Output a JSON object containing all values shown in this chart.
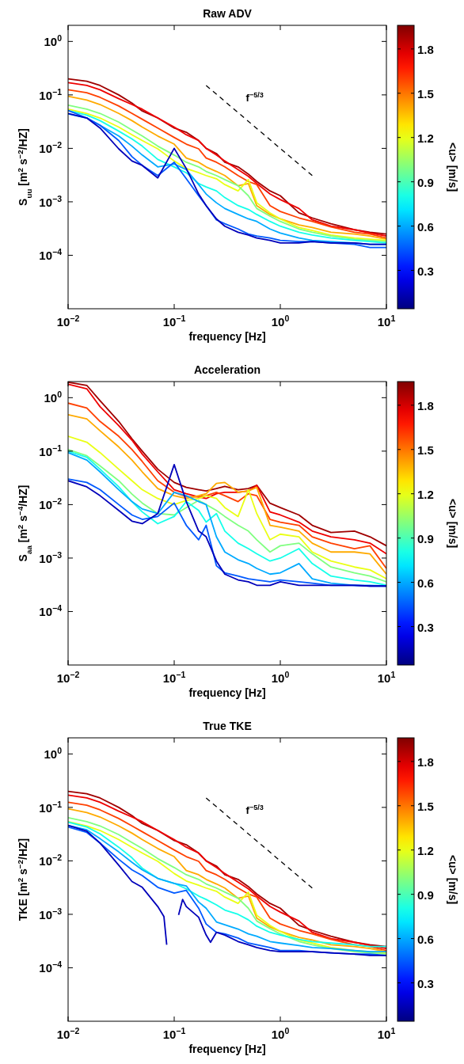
{
  "chart_data": [
    {
      "type": "line",
      "title": "Raw ADV",
      "xlabel": "frequency [Hz]",
      "ylabel": "S$_{uu}$ [m$^{2}$ s$^{−2}$/HZ]",
      "clabel": "<u> [m/s]",
      "log": "xy",
      "xlim": [
        0.01,
        10
      ],
      "ylim": [
        1e-05,
        2
      ],
      "xticks": [
        {
          "value": 0.01,
          "label": "10$^{−2}$"
        },
        {
          "value": 0.1,
          "label": "10$^{−1}$"
        },
        {
          "value": 1,
          "label": "10$^{0}$"
        },
        {
          "value": 10,
          "label": "10$^{1}$"
        }
      ],
      "yticks": [
        {
          "value": 0.0001,
          "label": "10$^{−4}$"
        },
        {
          "value": 0.001,
          "label": "10$^{−3}$"
        },
        {
          "value": 0.01,
          "label": "10$^{−2}$"
        },
        {
          "value": 0.1,
          "label": "10$^{−1}$"
        },
        {
          "value": 1,
          "label": "10$^{0}$"
        }
      ],
      "clim": [
        0.04,
        1.96
      ],
      "cticks": [
        0.3,
        0.6,
        0.9,
        1.2,
        1.5,
        1.8
      ],
      "x": [
        0.01,
        0.015,
        0.02,
        0.03,
        0.04,
        0.05,
        0.07,
        0.1,
        0.13,
        0.17,
        0.2,
        0.25,
        0.3,
        0.4,
        0.5,
        0.6,
        0.8,
        1,
        1.5,
        2,
        3,
        5,
        7,
        10
      ],
      "series": [
        {
          "color": "#9f0000",
          "values": [
            0.2,
            0.18,
            0.15,
            0.1,
            0.07,
            0.05,
            0.037,
            0.024,
            0.02,
            0.014,
            0.01,
            0.008,
            0.0055,
            0.0045,
            0.0033,
            0.0024,
            0.0016,
            0.0013,
            0.00062,
            0.0005,
            0.00039,
            0.0003,
            0.00027,
            0.00025
          ]
        },
        {
          "color": "#ef0000",
          "values": [
            0.17,
            0.15,
            0.125,
            0.085,
            0.066,
            0.054,
            0.037,
            0.025,
            0.018,
            0.014,
            0.01,
            0.0075,
            0.0058,
            0.004,
            0.003,
            0.0022,
            0.0014,
            0.0011,
            0.00075,
            0.00046,
            0.00035,
            0.0003,
            0.00026,
            0.00023
          ]
        },
        {
          "color": "#ff4000",
          "values": [
            0.125,
            0.11,
            0.09,
            0.062,
            0.045,
            0.035,
            0.024,
            0.016,
            0.012,
            0.0098,
            0.0066,
            0.0055,
            0.0045,
            0.0031,
            0.0024,
            0.0021,
            0.00085,
            0.00066,
            0.0005,
            0.00043,
            0.00034,
            0.00027,
            0.00025,
            0.00021
          ]
        },
        {
          "color": "#ffaa00",
          "values": [
            0.094,
            0.08,
            0.066,
            0.045,
            0.033,
            0.025,
            0.017,
            0.012,
            0.0066,
            0.0055,
            0.0045,
            0.0037,
            0.0031,
            0.002,
            0.0022,
            0.00085,
            0.00058,
            0.00048,
            0.00037,
            0.00033,
            0.00027,
            0.00025,
            0.00023,
            0.0002
          ]
        },
        {
          "color": "#eaff15",
          "values": [
            0.054,
            0.045,
            0.037,
            0.025,
            0.018,
            0.014,
            0.0098,
            0.0058,
            0.0042,
            0.0035,
            0.0031,
            0.0027,
            0.0021,
            0.0016,
            0.0026,
            0.00096,
            0.00062,
            0.00048,
            0.00033,
            0.00029,
            0.00024,
            0.00021,
            0.0002,
            0.00019
          ]
        },
        {
          "color": "#80ff80",
          "values": [
            0.064,
            0.054,
            0.045,
            0.031,
            0.022,
            0.017,
            0.011,
            0.0075,
            0.0055,
            0.0045,
            0.0037,
            0.0031,
            0.0026,
            0.002,
            0.0013,
            0.00075,
            0.00054,
            0.00043,
            0.00031,
            0.00027,
            0.00023,
            0.0002,
            0.00019,
            0.00018
          ]
        },
        {
          "color": "#15ffea",
          "values": [
            0.051,
            0.042,
            0.033,
            0.021,
            0.015,
            0.011,
            0.0062,
            0.0045,
            0.0035,
            0.0022,
            0.0019,
            0.0016,
            0.0012,
            0.00085,
            0.00072,
            0.00058,
            0.00043,
            0.00035,
            0.00027,
            0.00024,
            0.00021,
            0.00019,
            0.00018,
            0.00017
          ]
        },
        {
          "color": "#00aaff",
          "values": [
            0.044,
            0.037,
            0.027,
            0.017,
            0.011,
            0.0075,
            0.0045,
            0.0051,
            0.004,
            0.0021,
            0.0014,
            0.00096,
            0.00075,
            0.00058,
            0.00048,
            0.00043,
            0.00031,
            0.00026,
            0.00021,
            0.00019,
            0.00018,
            0.00017,
            0.00016,
            0.00016
          ]
        },
        {
          "color": "#005aff",
          "values": [
            0.051,
            0.037,
            0.027,
            0.014,
            0.007,
            0.0048,
            0.0031,
            0.0055,
            0.0027,
            0.0013,
            0.00085,
            0.00046,
            0.00039,
            0.00031,
            0.00025,
            0.00023,
            0.00021,
            0.00019,
            0.00018,
            0.00018,
            0.00017,
            0.00016,
            0.00014,
            0.00014
          ]
        },
        {
          "color": "#0000ba",
          "values": [
            0.045,
            0.037,
            0.024,
            0.0098,
            0.0058,
            0.0048,
            0.0028,
            0.01,
            0.0042,
            0.0014,
            0.00085,
            0.00048,
            0.00035,
            0.00027,
            0.00024,
            0.00021,
            0.00019,
            0.00017,
            0.00017,
            0.00018,
            0.00017,
            0.00017,
            0.00016,
            0.00016
          ]
        },
        {
          "name": "f$^{−5/3}$",
          "color": "#000000",
          "line_style": "dashed",
          "x": [
            0.2,
            2
          ],
          "values": [
            0.15,
            0.0031
          ]
        }
      ]
    },
    {
      "type": "line",
      "title": "Acceleration",
      "xlabel": "frequency [Hz]",
      "ylabel": "S$_{aa}$ [m$^{2}$ s$^{−4}$/HZ]",
      "clabel": "<u> [m/s]",
      "log": "xy",
      "xlim": [
        0.01,
        10
      ],
      "ylim": [
        1e-05,
        2
      ],
      "xticks": [
        {
          "value": 0.01,
          "label": "10$^{−2}$"
        },
        {
          "value": 0.1,
          "label": "10$^{−1}$"
        },
        {
          "value": 1,
          "label": "10$^{0}$"
        },
        {
          "value": 10,
          "label": "10$^{1}$"
        }
      ],
      "yticks": [
        {
          "value": 0.0001,
          "label": "10$^{−4}$"
        },
        {
          "value": 0.001,
          "label": "10$^{−3}$"
        },
        {
          "value": 0.01,
          "label": "10$^{−2}$"
        },
        {
          "value": 0.1,
          "label": "10$^{−1}$"
        },
        {
          "value": 1,
          "label": "10$^{0}$"
        }
      ],
      "clim": [
        0.04,
        1.96
      ],
      "cticks": [
        0.3,
        0.6,
        0.9,
        1.2,
        1.5,
        1.8
      ],
      "x": [
        0.01,
        0.015,
        0.02,
        0.03,
        0.04,
        0.05,
        0.07,
        0.1,
        0.13,
        0.17,
        0.2,
        0.25,
        0.3,
        0.4,
        0.5,
        0.6,
        0.8,
        1,
        1.5,
        2,
        3,
        5,
        7,
        10
      ],
      "series": [
        {
          "color": "#9f0000",
          "values": [
            1.95,
            1.7,
            0.88,
            0.36,
            0.17,
            0.1,
            0.046,
            0.026,
            0.021,
            0.019,
            0.018,
            0.02,
            0.022,
            0.019,
            0.02,
            0.023,
            0.0106,
            0.0088,
            0.0064,
            0.0041,
            0.003,
            0.0032,
            0.0025,
            0.0017
          ]
        },
        {
          "color": "#ef0000",
          "values": [
            1.78,
            1.47,
            0.68,
            0.3,
            0.16,
            0.088,
            0.041,
            0.019,
            0.016,
            0.014,
            0.013,
            0.016,
            0.017,
            0.017,
            0.018,
            0.023,
            0.0073,
            0.0064,
            0.0047,
            0.0032,
            0.0025,
            0.0022,
            0.0019,
            0.0012
          ]
        },
        {
          "color": "#ff4000",
          "values": [
            0.79,
            0.64,
            0.36,
            0.19,
            0.107,
            0.064,
            0.028,
            0.017,
            0.014,
            0.014,
            0.0147,
            0.017,
            0.0147,
            0.0114,
            0.016,
            0.0147,
            0.0053,
            0.0047,
            0.0041,
            0.0025,
            0.0019,
            0.0015,
            0.0017,
            0.00064
          ]
        },
        {
          "color": "#ffaa00",
          "values": [
            0.48,
            0.4,
            0.24,
            0.12,
            0.068,
            0.041,
            0.02,
            0.0147,
            0.013,
            0.0147,
            0.016,
            0.025,
            0.026,
            0.017,
            0.018,
            0.021,
            0.0041,
            0.0038,
            0.0032,
            0.0019,
            0.0013,
            0.0013,
            0.0012,
            0.0005
          ]
        },
        {
          "color": "#eaff15",
          "values": [
            0.19,
            0.147,
            0.094,
            0.046,
            0.028,
            0.019,
            0.013,
            0.01,
            0.012,
            0.013,
            0.0147,
            0.013,
            0.0088,
            0.006,
            0.019,
            0.0068,
            0.0022,
            0.0028,
            0.0025,
            0.0013,
            0.00088,
            0.00068,
            0.0006,
            0.00041
          ]
        },
        {
          "color": "#80ff80",
          "values": [
            0.107,
            0.082,
            0.053,
            0.028,
            0.0157,
            0.0107,
            0.0068,
            0.0064,
            0.0088,
            0.012,
            0.01,
            0.0078,
            0.006,
            0.0041,
            0.0032,
            0.0022,
            0.0013,
            0.0017,
            0.0019,
            0.0012,
            0.00068,
            0.00053,
            0.00046,
            0.00036
          ]
        },
        {
          "color": "#15ffea",
          "values": [
            0.1,
            0.077,
            0.046,
            0.0215,
            0.0114,
            0.0073,
            0.0044,
            0.006,
            0.0114,
            0.0078,
            0.0047,
            0.0068,
            0.0032,
            0.0019,
            0.0015,
            0.0012,
            0.00088,
            0.001,
            0.0015,
            0.00079,
            0.00046,
            0.00039,
            0.00036,
            0.00031
          ]
        },
        {
          "color": "#00aaff",
          "values": [
            0.094,
            0.068,
            0.041,
            0.019,
            0.0114,
            0.0083,
            0.0068,
            0.017,
            0.0147,
            0.0114,
            0.01,
            0.0025,
            0.0013,
            0.00093,
            0.00079,
            0.00064,
            0.0005,
            0.00053,
            0.00079,
            0.00041,
            0.00034,
            0.00031,
            0.00031,
            0.0003
          ]
        },
        {
          "color": "#005aff",
          "values": [
            0.03,
            0.026,
            0.019,
            0.01,
            0.0064,
            0.0053,
            0.006,
            0.0107,
            0.0041,
            0.0022,
            0.0041,
            0.00072,
            0.00053,
            0.00046,
            0.00041,
            0.00039,
            0.00036,
            0.00039,
            0.00036,
            0.00034,
            0.00031,
            0.00031,
            0.0003,
            0.0003
          ]
        },
        {
          "color": "#0000ba",
          "values": [
            0.028,
            0.0215,
            0.0147,
            0.0078,
            0.0049,
            0.0044,
            0.0068,
            0.056,
            0.0114,
            0.0032,
            0.0025,
            0.00088,
            0.0005,
            0.00039,
            0.00036,
            0.00031,
            0.00031,
            0.00036,
            0.00031,
            0.00031,
            0.00031,
            0.00031,
            0.0003,
            0.0003
          ]
        }
      ]
    },
    {
      "type": "line",
      "title": "True TKE",
      "xlabel": "frequency [Hz]",
      "ylabel": "TKE [m$^{2}$ s$^{−2}$/HZ]",
      "clabel": "<u> [m/s]",
      "log": "xy",
      "xlim": [
        0.01,
        10
      ],
      "ylim": [
        1e-05,
        2
      ],
      "xticks": [
        {
          "value": 0.01,
          "label": "10$^{−2}$"
        },
        {
          "value": 0.1,
          "label": "10$^{−1}$"
        },
        {
          "value": 1,
          "label": "10$^{0}$"
        },
        {
          "value": 10,
          "label": "10$^{1}$"
        }
      ],
      "yticks": [
        {
          "value": 0.0001,
          "label": "10$^{−4}$"
        },
        {
          "value": 0.001,
          "label": "10$^{−3}$"
        },
        {
          "value": 0.01,
          "label": "10$^{−2}$"
        },
        {
          "value": 0.1,
          "label": "10$^{−1}$"
        },
        {
          "value": 1,
          "label": "10$^{0}$"
        }
      ],
      "clim": [
        0.04,
        1.96
      ],
      "cticks": [
        0.3,
        0.6,
        0.9,
        1.2,
        1.5,
        1.8
      ],
      "x": [
        0.01,
        0.015,
        0.02,
        0.03,
        0.04,
        0.05,
        0.07,
        0.1,
        0.13,
        0.17,
        0.2,
        0.25,
        0.3,
        0.4,
        0.5,
        0.6,
        0.8,
        1,
        1.5,
        2,
        3,
        5,
        7,
        10
      ],
      "series": [
        {
          "color": "#9f0000",
          "values": [
            0.2,
            0.18,
            0.15,
            0.1,
            0.07,
            0.05,
            0.037,
            0.024,
            0.02,
            0.014,
            0.01,
            0.008,
            0.0055,
            0.0045,
            0.0033,
            0.0024,
            0.0016,
            0.0013,
            0.00062,
            0.0005,
            0.00039,
            0.0003,
            0.00027,
            0.00025
          ]
        },
        {
          "color": "#ef0000",
          "values": [
            0.17,
            0.15,
            0.125,
            0.085,
            0.066,
            0.054,
            0.037,
            0.025,
            0.018,
            0.014,
            0.01,
            0.0075,
            0.0058,
            0.004,
            0.003,
            0.0022,
            0.0014,
            0.0011,
            0.00075,
            0.00046,
            0.00035,
            0.0003,
            0.00026,
            0.00023
          ]
        },
        {
          "color": "#ff4000",
          "values": [
            0.125,
            0.11,
            0.09,
            0.062,
            0.045,
            0.035,
            0.024,
            0.016,
            0.012,
            0.0098,
            0.0066,
            0.0055,
            0.0045,
            0.0031,
            0.0024,
            0.0021,
            0.00085,
            0.00066,
            0.0005,
            0.00043,
            0.00034,
            0.00027,
            0.00025,
            0.00021
          ]
        },
        {
          "color": "#ffaa00",
          "values": [
            0.094,
            0.08,
            0.066,
            0.045,
            0.033,
            0.025,
            0.017,
            0.012,
            0.0066,
            0.0055,
            0.0045,
            0.0037,
            0.0031,
            0.002,
            0.0022,
            0.00085,
            0.00058,
            0.00048,
            0.00037,
            0.00033,
            0.00027,
            0.00025,
            0.00023,
            0.0002
          ]
        },
        {
          "color": "#eaff15",
          "values": [
            0.054,
            0.045,
            0.037,
            0.025,
            0.018,
            0.014,
            0.0098,
            0.0058,
            0.0042,
            0.0035,
            0.0031,
            0.0027,
            0.0021,
            0.0016,
            0.0026,
            0.00096,
            0.00062,
            0.00048,
            0.00033,
            0.00029,
            0.00024,
            0.00021,
            0.0002,
            0.00019
          ]
        },
        {
          "color": "#80ff80",
          "values": [
            0.064,
            0.054,
            0.045,
            0.031,
            0.022,
            0.017,
            0.011,
            0.0075,
            0.0055,
            0.0045,
            0.0037,
            0.0031,
            0.0026,
            0.002,
            0.0013,
            0.00075,
            0.00054,
            0.00043,
            0.00031,
            0.00027,
            0.00023,
            0.0002,
            0.00019,
            0.00018
          ]
        },
        {
          "color": "#15ffea",
          "values": [
            0.053,
            0.043,
            0.032,
            0.018,
            0.0114,
            0.0073,
            0.0047,
            0.0038,
            0.003,
            0.0022,
            0.0019,
            0.0015,
            0.0012,
            0.001,
            0.00079,
            0.0006,
            0.00046,
            0.00041,
            0.00034,
            0.00031,
            0.00029,
            0.00027,
            0.00025,
            0.00025
          ]
        },
        {
          "color": "#00aaff",
          "values": [
            0.046,
            0.038,
            0.026,
            0.0147,
            0.0094,
            0.0068,
            0.0047,
            0.0038,
            0.0034,
            0.0017,
            0.0013,
            0.00072,
            0.00064,
            0.00053,
            0.00043,
            0.00039,
            0.00031,
            0.00029,
            0.00026,
            0.00024,
            0.00023,
            0.00021,
            0.0002,
            0.0002
          ]
        },
        {
          "color": "#005aff",
          "values": [
            0.043,
            0.034,
            0.0215,
            0.0107,
            0.0068,
            0.0053,
            0.0032,
            0.0025,
            0.0028,
            0.0013,
            0.00066,
            0.00046,
            0.00043,
            0.00036,
            0.00029,
            0.00027,
            0.00024,
            0.00021,
            0.00021,
            0.0002,
            0.00019,
            0.00018,
            0.00018,
            0.00017
          ]
        },
        {
          "color": "#0000ba",
          "x": [
            0.01,
            0.015,
            0.02,
            0.03,
            0.04,
            0.05,
            0.07,
            0.08,
            0.085,
            0.1,
            0.11,
            0.12,
            0.13,
            0.17,
            0.2,
            0.22,
            0.25,
            0.3,
            0.4,
            0.5,
            0.6,
            0.8,
            1,
            1.5,
            2,
            3,
            5,
            7,
            10
          ],
          "values": [
            0.046,
            0.036,
            0.0215,
            0.0083,
            0.0041,
            0.0032,
            0.0014,
            0.00091,
            0.00027,
            null,
            0.00097,
            0.0019,
            0.0014,
            0.00088,
            0.00041,
            0.0003,
            0.00046,
            0.00041,
            0.00031,
            0.00027,
            0.00024,
            0.00021,
            0.0002,
            0.0002,
            0.0002,
            0.00019,
            0.00018,
            0.00017,
            0.00017
          ]
        },
        {
          "name": "f$^{−5/3}$",
          "color": "#000000",
          "line_style": "dashed",
          "x": [
            0.2,
            2
          ],
          "values": [
            0.15,
            0.0031
          ]
        }
      ]
    }
  ]
}
